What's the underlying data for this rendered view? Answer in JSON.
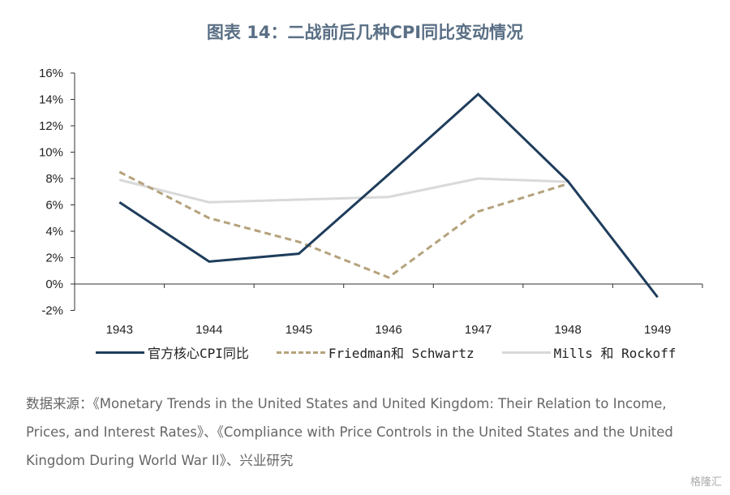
{
  "title": "图表 14：二战前后几种CPI同比变动情况",
  "chart_data": {
    "type": "line",
    "title": "图表 14：二战前后几种CPI同比变动情况",
    "categories": [
      "1943",
      "1944",
      "1945",
      "1946",
      "1947",
      "1948",
      "1949"
    ],
    "ylim": [
      -2,
      16
    ],
    "yticks": [
      "-2%",
      "0%",
      "2%",
      "4%",
      "6%",
      "8%",
      "10%",
      "12%",
      "14%",
      "16%"
    ],
    "ytick_values": [
      -2,
      0,
      2,
      4,
      6,
      8,
      10,
      12,
      14,
      16
    ],
    "legend_position": "bottom",
    "series": [
      {
        "name": "官方核心CPI同比",
        "color": "#1f3d5c",
        "style": "solid",
        "values": [
          6.2,
          1.7,
          2.3,
          8.3,
          14.4,
          7.8,
          -1.0
        ]
      },
      {
        "name": "Friedman和 Schwartz",
        "color": "#b5a27c",
        "style": "dashed",
        "values": [
          8.5,
          5.0,
          3.2,
          0.5,
          5.5,
          7.6,
          null
        ]
      },
      {
        "name": "Mills 和 Rockoff",
        "color": "#d9d9d9",
        "style": "solid",
        "values": [
          7.9,
          6.2,
          6.4,
          6.6,
          8.0,
          7.75,
          null
        ]
      }
    ]
  },
  "source": "数据来源：《Monetary Trends in the United States and United Kingdom: Their Relation to Income, Prices, and Interest Rates》、《Compliance with Price Controls in the United States and the United Kingdom During World War II》、兴业研究",
  "watermark": "格隆汇"
}
